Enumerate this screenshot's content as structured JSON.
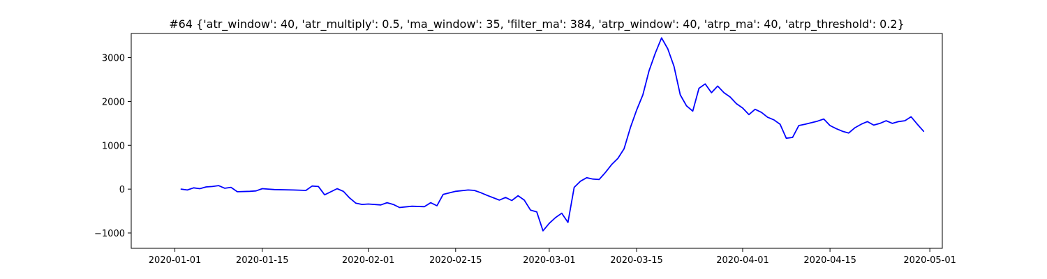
{
  "chart_data": {
    "type": "line",
    "title": "#64 {'atr_window': 40, 'atr_multiply': 0.5, 'ma_window': 35, 'filter_ma': 384, 'atrp_window': 40, 'atrp_ma': 40, 'atrp_threshold': 0.2}",
    "xlabel": "",
    "ylabel": "",
    "xlim": [
      "2019-12-25",
      "2020-05-03"
    ],
    "ylim": [
      -1350,
      3550
    ],
    "xticks": [
      "2020-01-01",
      "2020-01-15",
      "2020-02-01",
      "2020-02-15",
      "2020-03-01",
      "2020-03-15",
      "2020-04-01",
      "2020-04-15",
      "2020-05-01"
    ],
    "yticks": [
      -1000,
      0,
      1000,
      2000,
      3000
    ],
    "grid": false,
    "color": "#0000ff",
    "series": [
      {
        "x": [
          "2020-01-02",
          "2020-01-03",
          "2020-01-04",
          "2020-01-05",
          "2020-01-06",
          "2020-01-07",
          "2020-01-08",
          "2020-01-09",
          "2020-01-10",
          "2020-01-11",
          "2020-01-13",
          "2020-01-14",
          "2020-01-15",
          "2020-01-17",
          "2020-01-20",
          "2020-01-22",
          "2020-01-23",
          "2020-01-24",
          "2020-01-25",
          "2020-01-27",
          "2020-01-28",
          "2020-01-29",
          "2020-01-30",
          "2020-01-31",
          "2020-02-01",
          "2020-02-03",
          "2020-02-04",
          "2020-02-05",
          "2020-02-06",
          "2020-02-08",
          "2020-02-10",
          "2020-02-11",
          "2020-02-12",
          "2020-02-13",
          "2020-02-15",
          "2020-02-17",
          "2020-02-18",
          "2020-02-19",
          "2020-02-20",
          "2020-02-22",
          "2020-02-23",
          "2020-02-24",
          "2020-02-25",
          "2020-02-26",
          "2020-02-27",
          "2020-02-28",
          "2020-02-29",
          "2020-03-01",
          "2020-03-02",
          "2020-03-03",
          "2020-03-04",
          "2020-03-05",
          "2020-03-06",
          "2020-03-07",
          "2020-03-08",
          "2020-03-09",
          "2020-03-10",
          "2020-03-11",
          "2020-03-12",
          "2020-03-13",
          "2020-03-14",
          "2020-03-15",
          "2020-03-16",
          "2020-03-17",
          "2020-03-18",
          "2020-03-19",
          "2020-03-20",
          "2020-03-21",
          "2020-03-22",
          "2020-03-23",
          "2020-03-24",
          "2020-03-25",
          "2020-03-26",
          "2020-03-27",
          "2020-03-28",
          "2020-03-29",
          "2020-03-30",
          "2020-03-31",
          "2020-04-01",
          "2020-04-02",
          "2020-04-03",
          "2020-04-04",
          "2020-04-05",
          "2020-04-06",
          "2020-04-07",
          "2020-04-08",
          "2020-04-09",
          "2020-04-10",
          "2020-04-11",
          "2020-04-13",
          "2020-04-14",
          "2020-04-15",
          "2020-04-16",
          "2020-04-17",
          "2020-04-18",
          "2020-04-19",
          "2020-04-20",
          "2020-04-21",
          "2020-04-22",
          "2020-04-23",
          "2020-04-24",
          "2020-04-25",
          "2020-04-26",
          "2020-04-27",
          "2020-04-28",
          "2020-04-29",
          "2020-04-30"
        ],
        "values": [
          0,
          -20,
          30,
          10,
          50,
          60,
          80,
          20,
          40,
          -60,
          -50,
          -40,
          10,
          -10,
          -20,
          -30,
          70,
          60,
          -130,
          10,
          -50,
          -200,
          -320,
          -350,
          -340,
          -360,
          -310,
          -350,
          -420,
          -390,
          -400,
          -310,
          -380,
          -120,
          -50,
          -20,
          -30,
          -80,
          -140,
          -250,
          -190,
          -260,
          -150,
          -250,
          -480,
          -520,
          -950,
          -780,
          -650,
          -550,
          -760,
          40,
          180,
          260,
          230,
          220,
          380,
          560,
          700,
          920,
          1400,
          1800,
          2150,
          2700,
          3100,
          3450,
          3200,
          2800,
          2150,
          1900,
          1780,
          2300,
          2400,
          2200,
          2350,
          2200,
          2100,
          1950,
          1850,
          1700,
          1820,
          1750,
          1640,
          1580,
          1480,
          1160,
          1180,
          1450,
          1480,
          1550,
          1600,
          1450,
          1380,
          1320,
          1280,
          1400,
          1480,
          1540,
          1460,
          1500,
          1560,
          1500,
          1540,
          1560,
          1650,
          1480,
          1320
        ]
      }
    ]
  }
}
